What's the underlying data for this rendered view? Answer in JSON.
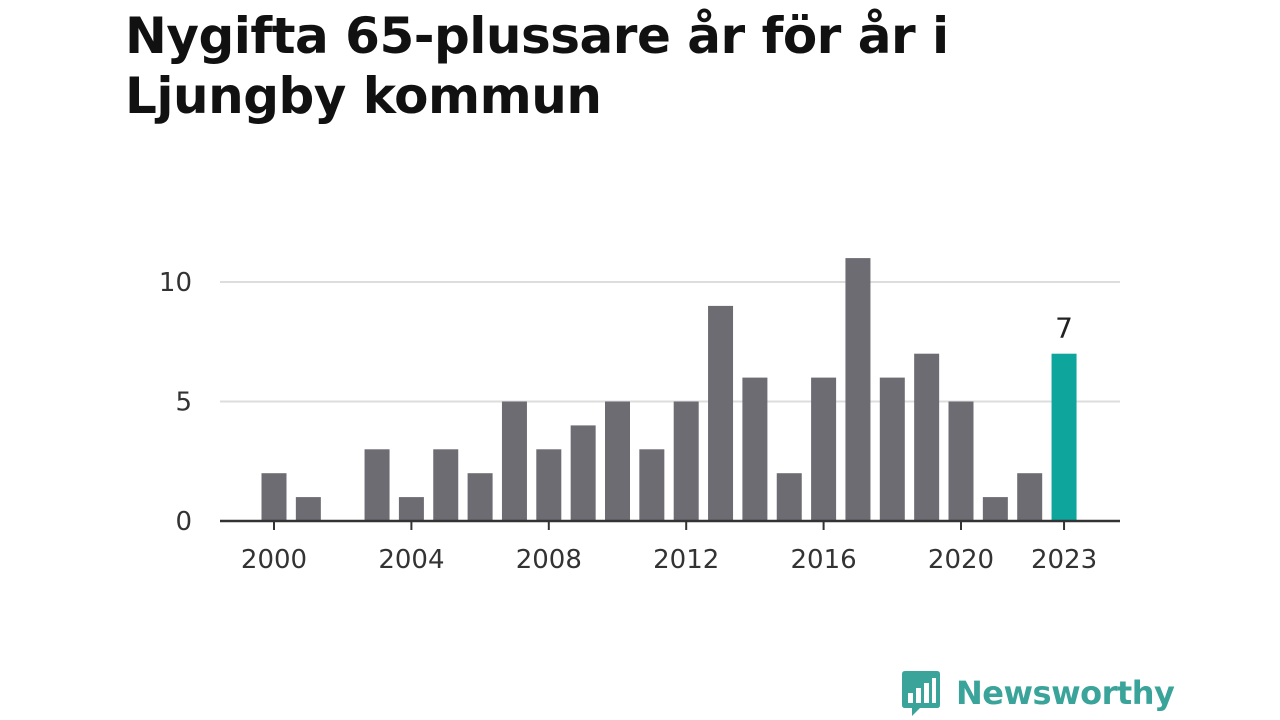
{
  "title": "Nygifta 65-plussare år för år i Ljungby kommun",
  "colors": {
    "bar": "#6d6c72",
    "highlight": "#0ea59c",
    "grid": "#dddddd",
    "axis": "#333333",
    "text": "#333333",
    "brand": "#3aa39a"
  },
  "brand": {
    "name": "Newsworthy",
    "icon": "bar-chart-speech-bubble-icon"
  },
  "chart_data": {
    "type": "bar",
    "title": "Nygifta 65-plussare år för år i Ljungby kommun",
    "xlabel": "",
    "ylabel": "",
    "categories": [
      "2000",
      "2001",
      "2002",
      "2003",
      "2004",
      "2005",
      "2006",
      "2007",
      "2008",
      "2009",
      "2010",
      "2011",
      "2012",
      "2013",
      "2014",
      "2015",
      "2016",
      "2017",
      "2018",
      "2019",
      "2020",
      "2021",
      "2022",
      "2023"
    ],
    "values": [
      2,
      1,
      0,
      3,
      1,
      3,
      2,
      5,
      3,
      4,
      5,
      3,
      5,
      9,
      6,
      2,
      6,
      11,
      6,
      7,
      5,
      1,
      2,
      7
    ],
    "ylim": [
      0,
      10
    ],
    "yticks": [
      "0",
      "5",
      "10"
    ],
    "xticks": [
      "2000",
      "2004",
      "2008",
      "2012",
      "2016",
      "2020",
      "2023"
    ],
    "highlight": {
      "category": "2023",
      "label": "7"
    },
    "grid": true,
    "legend": "none"
  }
}
